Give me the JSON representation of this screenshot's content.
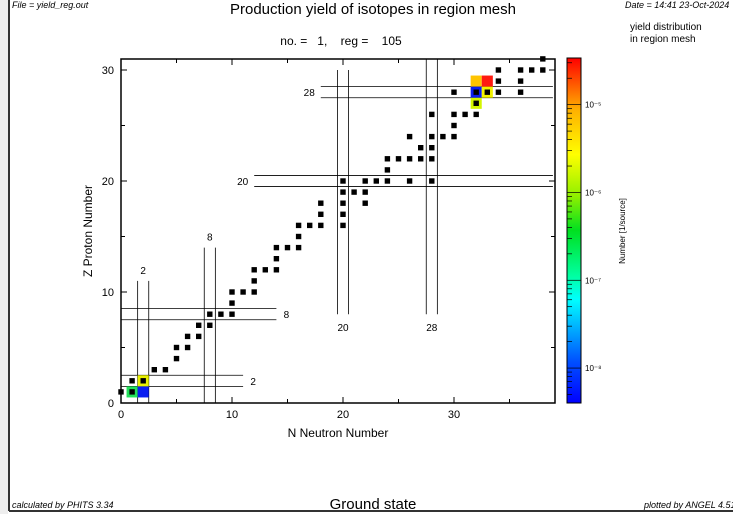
{
  "header": {
    "file": "File = yield_reg.out",
    "title": "Production yield of isotopes in region mesh",
    "subtitle": "no. =   1,    reg =    105",
    "date": "Date = 14:41 23-Oct-2024",
    "note_line1": "yield distribution",
    "note_line2": "in region mesh"
  },
  "footer": {
    "calculated_by": "calculated by PHITS 3.34",
    "state": "Ground state",
    "plotted_by": "plotted by ANGEL 4.51"
  },
  "chart_data": {
    "type": "heatmap",
    "title": "Production yield of isotopes in region mesh",
    "xlabel": "N Neutron Number",
    "ylabel": "Z Proton Number",
    "xlim": [
      0,
      39
    ],
    "ylim": [
      0,
      31
    ],
    "x_ticks": [
      "0",
      "10",
      "20",
      "30"
    ],
    "y_ticks": [
      "0",
      "10",
      "20",
      "30"
    ],
    "grid": false,
    "colorbar": {
      "label": "Number [1/source]",
      "scale": "log",
      "range": [
        4e-09,
        3.4e-05
      ],
      "tick_labels": [
        "10⁻⁵",
        "10⁻⁶",
        "10⁻⁷",
        "10⁻⁸"
      ],
      "tick_values": [
        1e-05,
        1e-06,
        1e-07,
        1e-08
      ]
    },
    "yield_cells": [
      {
        "N": 1,
        "Z": 1,
        "value": 3e-07,
        "color": "#22e05a"
      },
      {
        "N": 2,
        "Z": 1,
        "value": 5e-09,
        "color": "#0a1ef0"
      },
      {
        "N": 2,
        "Z": 2,
        "value": 2e-06,
        "color": "#e8f000"
      },
      {
        "N": 32,
        "Z": 29,
        "value": 1e-05,
        "color": "#ffc400"
      },
      {
        "N": 33,
        "Z": 29,
        "value": 3e-05,
        "color": "#ff1a10"
      },
      {
        "N": 32,
        "Z": 28,
        "value": 5e-09,
        "color": "#0a1ef0"
      },
      {
        "N": 33,
        "Z": 28,
        "value": 2e-06,
        "color": "#f2f200"
      },
      {
        "N": 32,
        "Z": 27,
        "value": 1.2e-06,
        "color": "#d4f500"
      }
    ],
    "stable_isotopes": [
      [
        0,
        1
      ],
      [
        1,
        1
      ],
      [
        1,
        2
      ],
      [
        2,
        2
      ],
      [
        3,
        3
      ],
      [
        4,
        3
      ],
      [
        5,
        4
      ],
      [
        5,
        5
      ],
      [
        6,
        5
      ],
      [
        6,
        6
      ],
      [
        7,
        6
      ],
      [
        7,
        7
      ],
      [
        8,
        7
      ],
      [
        8,
        8
      ],
      [
        9,
        8
      ],
      [
        10,
        8
      ],
      [
        10,
        9
      ],
      [
        10,
        10
      ],
      [
        11,
        10
      ],
      [
        12,
        10
      ],
      [
        12,
        11
      ],
      [
        12,
        12
      ],
      [
        13,
        12
      ],
      [
        14,
        12
      ],
      [
        14,
        13
      ],
      [
        14,
        14
      ],
      [
        15,
        14
      ],
      [
        16,
        14
      ],
      [
        16,
        15
      ],
      [
        16,
        16
      ],
      [
        17,
        16
      ],
      [
        18,
        16
      ],
      [
        20,
        16
      ],
      [
        18,
        17
      ],
      [
        20,
        17
      ],
      [
        18,
        18
      ],
      [
        20,
        18
      ],
      [
        22,
        18
      ],
      [
        20,
        19
      ],
      [
        21,
        19
      ],
      [
        22,
        19
      ],
      [
        20,
        20
      ],
      [
        22,
        20
      ],
      [
        23,
        20
      ],
      [
        24,
        20
      ],
      [
        26,
        20
      ],
      [
        28,
        20
      ],
      [
        24,
        21
      ],
      [
        24,
        22
      ],
      [
        25,
        22
      ],
      [
        26,
        22
      ],
      [
        27,
        22
      ],
      [
        28,
        22
      ],
      [
        27,
        23
      ],
      [
        28,
        23
      ],
      [
        26,
        24
      ],
      [
        28,
        24
      ],
      [
        29,
        24
      ],
      [
        30,
        24
      ],
      [
        30,
        25
      ],
      [
        28,
        26
      ],
      [
        30,
        26
      ],
      [
        31,
        26
      ],
      [
        32,
        26
      ],
      [
        32,
        27
      ],
      [
        30,
        28
      ],
      [
        32,
        28
      ],
      [
        33,
        28
      ],
      [
        34,
        28
      ],
      [
        36,
        28
      ],
      [
        34,
        29
      ],
      [
        36,
        29
      ],
      [
        34,
        30
      ],
      [
        36,
        30
      ],
      [
        37,
        30
      ],
      [
        38,
        30
      ],
      [
        38,
        31
      ]
    ],
    "magic_numbers": {
      "neutron": [
        {
          "label": "2",
          "N": 2,
          "Z_range": [
            0,
            11
          ]
        },
        {
          "label": "8",
          "N": 8,
          "Z_range": [
            0,
            14
          ]
        },
        {
          "label": "20",
          "N": 20,
          "Z_range": [
            8,
            30
          ]
        },
        {
          "label": "28",
          "N": 28,
          "Z_range": [
            8,
            31
          ]
        }
      ],
      "proton": [
        {
          "label": "2",
          "Z": 2,
          "N_range": [
            0,
            11
          ]
        },
        {
          "label": "8",
          "Z": 8,
          "N_range": [
            0,
            14
          ]
        },
        {
          "label": "20",
          "Z": 20,
          "N_range": [
            12,
            39
          ]
        },
        {
          "label": "28",
          "Z": 28,
          "N_range": [
            18,
            39
          ]
        }
      ]
    }
  }
}
